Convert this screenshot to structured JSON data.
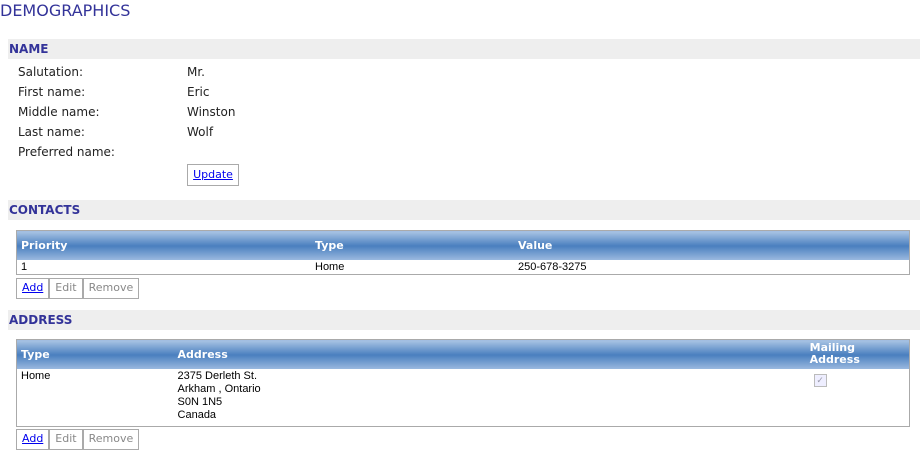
{
  "title": "DEMOGRAPHICS",
  "name": {
    "header": "NAME",
    "fields": [
      {
        "label": "Salutation:",
        "value": "Mr."
      },
      {
        "label": "First name:",
        "value": "Eric"
      },
      {
        "label": "Middle name:",
        "value": "Winston"
      },
      {
        "label": "Last name:",
        "value": "Wolf"
      },
      {
        "label": "Preferred name:",
        "value": ""
      }
    ],
    "update": "Update"
  },
  "contacts": {
    "header": "CONTACTS",
    "columns": [
      "Priority",
      "Type",
      "Value"
    ],
    "rows": [
      [
        "1",
        "Home",
        "250-678-3275"
      ]
    ],
    "buttons": [
      "Add",
      "Edit",
      "Remove"
    ]
  },
  "address": {
    "header": "ADDRESS",
    "columns": [
      "Type",
      "Address",
      "Mailing Address"
    ],
    "rows": [
      {
        "type": "Home",
        "lines": [
          "2375 Derleth St.",
          "Arkham , Ontario",
          "S0N 1N5",
          "Canada"
        ],
        "mailing": true
      }
    ],
    "buttons": [
      "Add",
      "Edit",
      "Remove"
    ]
  },
  "colors": {
    "heading": "#333399",
    "band": "#eeeeee",
    "table_header": "#4a7fbf"
  }
}
